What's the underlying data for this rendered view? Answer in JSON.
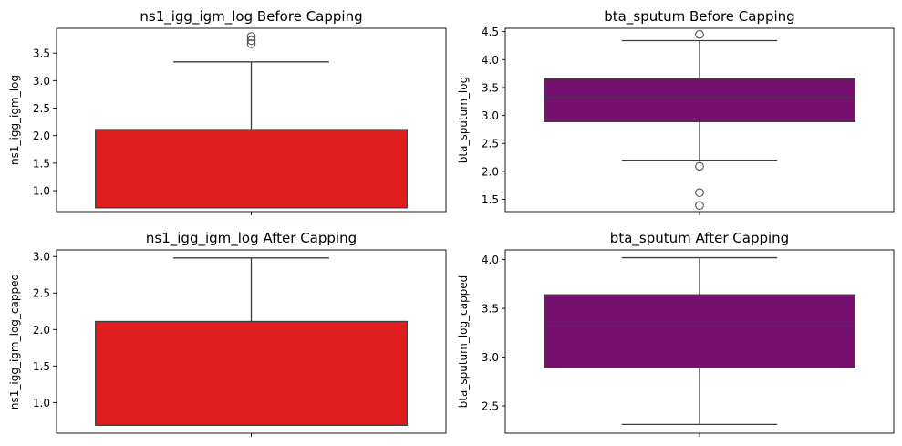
{
  "chart_data": [
    {
      "type": "box",
      "title": "ns1_igg_igm_log Before Capping",
      "xlabel": "",
      "ylabel": "ns1_igg_igm_log",
      "ylim": [
        0.62,
        3.95
      ],
      "yticks": [
        "1.0",
        "1.5",
        "2.0",
        "2.5",
        "3.0",
        "3.5"
      ],
      "color": "#df1f1f",
      "box": {
        "whislo": 0.69,
        "q1": 0.69,
        "med": 0.69,
        "q3": 2.11,
        "whishi": 3.34,
        "fliers": [
          3.67,
          3.73,
          3.8
        ]
      }
    },
    {
      "type": "box",
      "title": "bta_sputum Before Capping",
      "xlabel": "",
      "ylabel": "bta_sputum_log",
      "ylim": [
        1.28,
        4.56
      ],
      "yticks": [
        "1.5",
        "2.0",
        "2.5",
        "3.0",
        "3.5",
        "4.0",
        "4.5"
      ],
      "color": "#75106f",
      "box": {
        "whislo": 2.2,
        "q1": 2.89,
        "med": 3.32,
        "q3": 3.66,
        "whishi": 4.34,
        "fliers": [
          1.39,
          1.62,
          2.09,
          4.45
        ]
      }
    },
    {
      "type": "box",
      "title": "ns1_igg_igm_log After Capping",
      "xlabel": "",
      "ylabel": "ns1_igg_igm_log_capped",
      "ylim": [
        0.58,
        3.09
      ],
      "yticks": [
        "1.0",
        "1.5",
        "2.0",
        "2.5",
        "3.0"
      ],
      "color": "#df1f1f",
      "box": {
        "whislo": 0.69,
        "q1": 0.69,
        "med": 0.69,
        "q3": 2.11,
        "whishi": 2.98,
        "fliers": []
      }
    },
    {
      "type": "box",
      "title": "bta_sputum After Capping",
      "xlabel": "",
      "ylabel": "bta_sputum_log_capped",
      "ylim": [
        2.22,
        4.1
      ],
      "yticks": [
        "2.5",
        "3.0",
        "3.5",
        "4.0"
      ],
      "color": "#75106f",
      "box": {
        "whislo": 2.31,
        "q1": 2.89,
        "med": 3.32,
        "q3": 3.64,
        "whishi": 4.02,
        "fliers": []
      }
    }
  ]
}
